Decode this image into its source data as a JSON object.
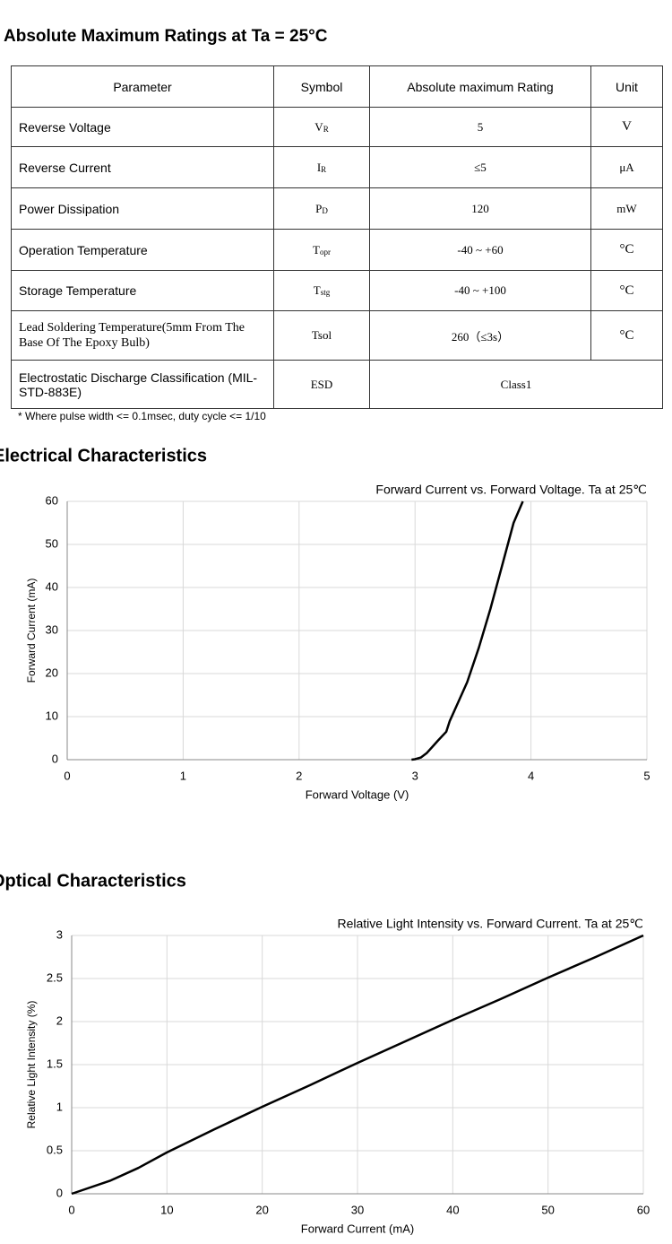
{
  "header": {
    "title": "Absolute Maximum Ratings at Ta = 25°C"
  },
  "table": {
    "header": [
      "Parameter",
      "Symbol",
      "Absolute maximum Rating",
      "Unit"
    ],
    "rows": [
      [
        {
          "text": "Reverse Voltage"
        },
        {
          "text": "V",
          "sub": "R"
        },
        {
          "text": "5"
        },
        {
          "text": "V"
        }
      ],
      [
        {
          "text": "Reverse Current"
        },
        {
          "text": "I",
          "sub": "R"
        },
        {
          "text": "≤5"
        },
        {
          "text": "μA"
        }
      ],
      [
        {
          "text": "Power Dissipation"
        },
        {
          "text": "P",
          "sub": "D"
        },
        {
          "text": "120"
        },
        {
          "text": "mW"
        }
      ],
      [
        {
          "text": "Operation Temperature"
        },
        {
          "text": "T",
          "sub": "opr"
        },
        {
          "text": "-40 ~ +60"
        },
        {
          "text": "°C"
        }
      ],
      [
        {
          "text": "Storage Temperature"
        },
        {
          "text": "T",
          "sub": "stg"
        },
        {
          "text": "-40 ~ +100"
        },
        {
          "text": "°C"
        }
      ],
      [
        {
          "text": "Lead Soldering Temperature(5mm From The Base Of The Epoxy Bulb)"
        },
        {
          "text": "Tsol"
        },
        {
          "text": "260（≤3s）"
        },
        {
          "text": "°C"
        }
      ],
      [
        {
          "text": "Electrostatic Discharge Classification (MIL-STD-883E)"
        },
        {
          "text": "ESD"
        },
        {
          "text": "Class1"
        }
      ]
    ]
  },
  "note": "* Where pulse width <= 0.1msec, duty cycle <= 1/10",
  "sections": [
    "Electrical Characteristics",
    "Optical Characteristics"
  ],
  "chart_data": [
    {
      "type": "line",
      "title": "Forward Current vs. Forward Voltage. Ta at 25℃",
      "x_label": "Forward Voltage (V)",
      "y_label": "Forward Current (mA)",
      "x": [
        2.97,
        3.0,
        3.05,
        3.1,
        3.15,
        3.2,
        3.27,
        3.3,
        3.35,
        3.45,
        3.55,
        3.65,
        3.75,
        3.85,
        3.93
      ],
      "values": [
        0,
        0.1,
        0.5,
        1.5,
        3,
        4.5,
        6.5,
        9,
        12,
        18,
        26,
        35,
        45,
        55,
        60
      ],
      "color": "#000000",
      "xlim": [
        0,
        5
      ],
      "xticks": [
        0,
        1,
        2,
        3,
        4,
        5
      ],
      "ylim": [
        0,
        60
      ],
      "yticks": [
        0,
        10,
        20,
        30,
        40,
        50,
        60
      ],
      "grid": true
    },
    {
      "type": "line",
      "title": "Relative Light Intensity vs. Forward Current. Ta at 25℃",
      "x_label": "Forward Current (mA)",
      "y_label": "Relative Light Intensity (%)",
      "x": [
        0,
        4,
        7,
        10,
        15,
        20,
        25,
        30,
        35,
        40,
        45,
        50,
        55,
        60
      ],
      "values": [
        0,
        0.15,
        0.3,
        0.48,
        0.75,
        1.01,
        1.26,
        1.52,
        1.77,
        2.02,
        2.26,
        2.51,
        2.75,
        3.0
      ],
      "color": "#000000",
      "xlim": [
        0,
        60
      ],
      "xticks": [
        0,
        10,
        20,
        30,
        40,
        50,
        60
      ],
      "ylim": [
        0,
        3
      ],
      "yticks": [
        0,
        0.5,
        1,
        1.5,
        2,
        2.5,
        3
      ],
      "grid": true
    }
  ]
}
